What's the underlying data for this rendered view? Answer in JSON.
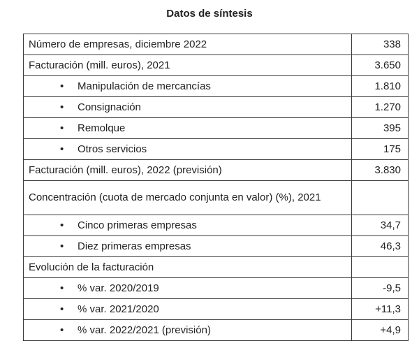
{
  "title": "Datos de síntesis",
  "rows": [
    {
      "label": "Número de empresas, diciembre 2022",
      "value": "338"
    },
    {
      "label": "Facturación (mill. euros), 2021",
      "value": "3.650"
    },
    {
      "label": "Manipulación de mercancías",
      "value": "1.810",
      "bullet": "•"
    },
    {
      "label": "Consignación",
      "value": "1.270",
      "bullet": "•"
    },
    {
      "label": "Remolque",
      "value": "395",
      "bullet": "•"
    },
    {
      "label": "Otros servicios",
      "value": "175",
      "bullet": "•"
    },
    {
      "label": "Facturación (mill. euros), 2022 (previsión)",
      "value": "3.830"
    },
    {
      "label": "Concentración (cuota de mercado conjunta en valor) (%), 2021",
      "value": ""
    },
    {
      "label": "Cinco primeras empresas",
      "value": "34,7",
      "bullet": "•"
    },
    {
      "label": "Diez primeras empresas",
      "value": "46,3",
      "bullet": "•"
    },
    {
      "label": "Evolución de la facturación",
      "value": ""
    },
    {
      "label": "% var. 2020/2019",
      "value": "-9,5",
      "bullet": "•"
    },
    {
      "label": "% var. 2021/2020",
      "value": "+11,3",
      "bullet": "•"
    },
    {
      "label": "% var. 2022/2021 (previsión)",
      "value": "+4,9",
      "bullet": "•"
    }
  ]
}
